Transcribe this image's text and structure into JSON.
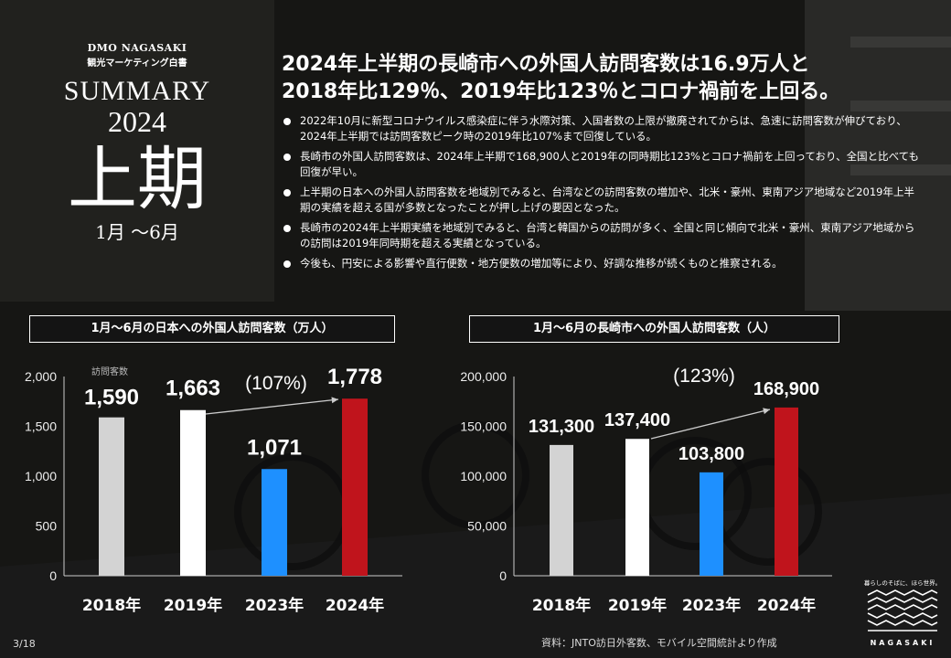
{
  "brand": {
    "org": "DMO NAGASAKI",
    "sub": "観光マーケティング白書",
    "summary_word": "SUMMARY",
    "year": "2024",
    "half": "上期",
    "months": "1月 〜6月"
  },
  "headline": {
    "line1": "2024年上半期の長崎市への外国人訪問客数は16.9万人と",
    "line2": "2018年比129％、2019年比123％とコロナ禍前を上回る。"
  },
  "bullets": [
    "2022年10月に新型コロナウイルス感染症に伴う水際対策、入国者数の上限が撤廃されてからは、急速に訪問客数が伸びており、2024年上半期では訪問客数ピーク時の2019年比107%まで回復している。",
    "長崎市の外国人訪問客数は、2024年上半期で168,900人と2019年の同時期比123%とコロナ禍前を上回っており、全国と比べても回復が早い。",
    "上半期の日本への外国人訪問客数を地域別でみると、台湾などの訪問客数の増加や、北米・豪州、東南アジア地域など2019年上半期の実績を超える国が多数となったことが押し上げの要因となった。",
    "長崎市の2024年上半期実績を地域別でみると、台湾と韓国からの訪問が多く、全国と同じ傾向で北米・豪州、東南アジア地域からの訪問は2019年同時期を超える実績となっている。",
    "今後も、円安による影響や直行便数・地方便数の増加等により、好調な推移が続くものと推察される。"
  ],
  "chart_data": [
    {
      "type": "bar",
      "title": "1月〜6月の日本への外国人訪問客数（万人）",
      "ylabel": "訪問客数",
      "categories": [
        "2018年",
        "2019年",
        "2023年",
        "2024年"
      ],
      "values": [
        1590,
        1663,
        1071,
        1778
      ],
      "value_labels": [
        "1,590",
        "1,663",
        "1,071",
        "1,778"
      ],
      "bar_colors": [
        "#d3d3d3",
        "#ffffff",
        "#1e90ff",
        "#c0141c"
      ],
      "ylim": [
        0,
        2000
      ],
      "yticks": [
        0,
        500,
        1000,
        1500,
        2000
      ],
      "ytick_labels": [
        "0",
        "500",
        "1,000",
        "1,500",
        "2,000"
      ],
      "annotation": {
        "text": "(107%)",
        "from": "2019年",
        "to": "2024年"
      }
    },
    {
      "type": "bar",
      "title": "1月〜6月の長崎市への外国人訪問客数（人）",
      "categories": [
        "2018年",
        "2019年",
        "2023年",
        "2024年"
      ],
      "values": [
        131300,
        137400,
        103800,
        168900
      ],
      "value_labels": [
        "131,300",
        "137,400",
        "103,800",
        "168,900"
      ],
      "bar_colors": [
        "#d3d3d3",
        "#ffffff",
        "#1e90ff",
        "#c0141c"
      ],
      "ylim": [
        0,
        200000
      ],
      "yticks": [
        0,
        50000,
        100000,
        150000,
        200000
      ],
      "ytick_labels": [
        "0",
        "50,000",
        "100,000",
        "150,000",
        "200,000"
      ],
      "annotation": {
        "text": "(123%)",
        "from": "2019年",
        "to": "2024年"
      }
    }
  ],
  "footer": {
    "page": "3/18",
    "source": "資料：JNTO訪日外客数、モバイル空間統計より作成",
    "city_tagline": "暮らしのそばに、ほら世界。",
    "city_name": "NAGASAKI"
  },
  "colors": {
    "accent_red": "#c0141c",
    "accent_blue": "#1e90ff"
  }
}
